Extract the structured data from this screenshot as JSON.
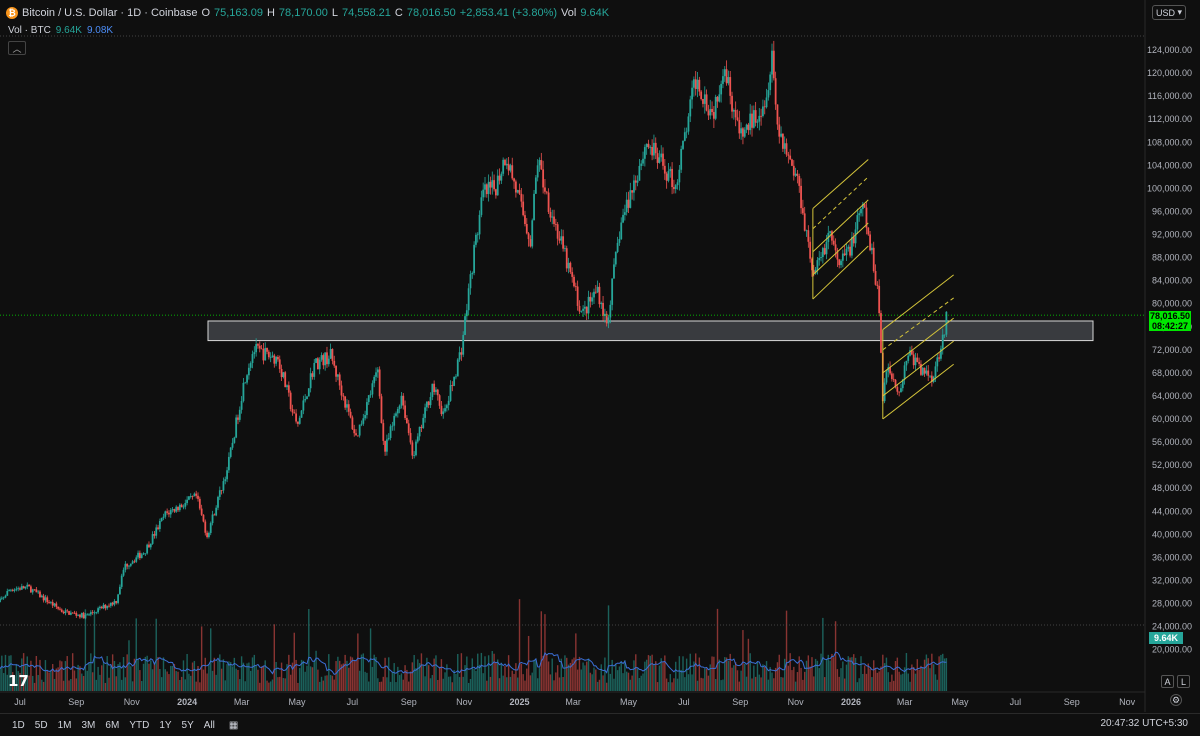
{
  "header": {
    "symbol_title": "Bitcoin / U.S. Dollar · 1D · Coinbase",
    "o_label": "O",
    "o_value": "75,163.09",
    "h_label": "H",
    "h_value": "78,170.00",
    "l_label": "L",
    "l_value": "74,558.21",
    "c_label": "C",
    "c_value": "78,016.50",
    "change": "+2,853.41 (+3.80%)",
    "vol_label": "Vol",
    "vol_value": "9.64K"
  },
  "volume_legend": {
    "label": "Vol · BTC",
    "v1": "9.64K",
    "v2": "9.08K"
  },
  "currency_select": "USD",
  "last_price": {
    "value": "78,016.50",
    "countdown": "08:42:27"
  },
  "volume_tag": "9.64K",
  "scale_buttons": [
    "A",
    "L"
  ],
  "range_buttons": [
    "1D",
    "5D",
    "1M",
    "3M",
    "6M",
    "YTD",
    "1Y",
    "5Y",
    "All"
  ],
  "timezone": "20:47:32 UTC+5:30",
  "colors": {
    "up": "#26a69a",
    "down": "#ef5350",
    "channel": "#d4c43a",
    "volume_ma": "#3b6fd6",
    "zone": "#b2b5be",
    "price_line": "#00e600"
  },
  "chart_data": {
    "type": "candlestick",
    "title": "Bitcoin / U.S. Dollar · 1D · Coinbase",
    "y_ticks": [
      "124,000.00",
      "120,000.00",
      "116,000.00",
      "112,000.00",
      "108,000.00",
      "104,000.00",
      "100,000.00",
      "96,000.00",
      "92,000.00",
      "88,000.00",
      "84,000.00",
      "80,000.00",
      "76,000.00",
      "72,000.00",
      "68,000.00",
      "64,000.00",
      "60,000.00",
      "56,000.00",
      "52,000.00",
      "48,000.00",
      "44,000.00",
      "40,000.00",
      "36,000.00",
      "32,000.00",
      "28,000.00",
      "24,000.00",
      "20,000.00"
    ],
    "ylim": [
      18000,
      127000
    ],
    "x_ticks": [
      "Jul",
      "Sep",
      "Nov",
      "2024",
      "Mar",
      "May",
      "Jul",
      "Sep",
      "Nov",
      "2025",
      "Mar",
      "May",
      "Jul",
      "Sep",
      "Nov",
      "2026",
      "Mar",
      "May",
      "Jul",
      "Sep",
      "Nov"
    ],
    "x_tick_dates": [
      "2023-07-01",
      "2023-09-01",
      "2023-11-01",
      "2024-01-01",
      "2024-03-01",
      "2024-05-01",
      "2024-07-01",
      "2024-09-01",
      "2024-11-01",
      "2025-01-01",
      "2025-03-01",
      "2025-05-01",
      "2025-07-01",
      "2025-09-01",
      "2025-11-01",
      "2026-01-01",
      "2026-03-01",
      "2026-05-01",
      "2026-07-01",
      "2026-09-01",
      "2026-11-01"
    ],
    "close_series": {
      "dates": [
        "2023-06-01",
        "2023-06-20",
        "2023-07-10",
        "2023-08-17",
        "2023-09-11",
        "2023-10-15",
        "2023-10-24",
        "2023-11-15",
        "2023-12-08",
        "2024-01-11",
        "2024-01-23",
        "2024-02-15",
        "2024-03-05",
        "2024-03-14",
        "2024-04-10",
        "2024-05-01",
        "2024-05-20",
        "2024-06-07",
        "2024-07-05",
        "2024-07-29",
        "2024-08-05",
        "2024-08-24",
        "2024-09-06",
        "2024-09-27",
        "2024-10-10",
        "2024-10-29",
        "2024-11-11",
        "2024-11-22",
        "2024-12-05",
        "2024-12-17",
        "2025-01-13",
        "2025-01-21",
        "2025-02-03",
        "2025-02-27",
        "2025-03-11",
        "2025-03-28",
        "2025-04-07",
        "2025-04-22",
        "2025-05-21",
        "2025-06-22",
        "2025-07-14",
        "2025-08-02",
        "2025-08-14",
        "2025-09-01",
        "2025-09-30",
        "2025-10-06",
        "2025-10-11",
        "2025-11-04",
        "2025-11-21",
        "2025-12-09",
        "2025-12-18",
        "2026-01-02",
        "2026-01-14",
        "2026-01-31",
        "2026-02-05",
        "2026-02-10",
        "2026-02-24",
        "2026-03-05",
        "2026-03-20",
        "2026-04-02",
        "2026-04-17"
      ],
      "close": [
        26900,
        30500,
        30800,
        26600,
        25800,
        28500,
        34500,
        37000,
        43500,
        46500,
        39800,
        51800,
        67500,
        72000,
        70500,
        58500,
        69500,
        71000,
        56800,
        68500,
        54000,
        64200,
        53600,
        65800,
        60500,
        72300,
        88000,
        99000,
        100000,
        106000,
        91000,
        105000,
        97000,
        84500,
        78000,
        82600,
        76300,
        93500,
        108000,
        100500,
        119000,
        113000,
        122000,
        108500,
        116000,
        124800,
        111500,
        101000,
        84700,
        92600,
        86000,
        90500,
        97000,
        82000,
        64200,
        69000,
        64800,
        71800,
        68200,
        67500,
        78000
      ]
    },
    "volume_ma": "Volume (BTC) with moving average",
    "support_zone": [
      73600,
      77000
    ],
    "channels": [
      {
        "start_date": "2025-11-20",
        "end_date": "2026-01-20",
        "levels_start": [
          80800,
          85000,
          89000,
          93000,
          96500
        ],
        "levels_end": [
          90000,
          94000,
          98000,
          102000,
          105000
        ]
      },
      {
        "start_date": "2026-02-05",
        "end_date": "2026-04-24",
        "levels_start": [
          60000,
          64000,
          68000,
          72000,
          75500
        ],
        "levels_end": [
          69500,
          73500,
          77500,
          81000,
          85000
        ]
      }
    ],
    "last_price_value": 78016.5,
    "grid": false,
    "legend_placement": "top-left"
  }
}
